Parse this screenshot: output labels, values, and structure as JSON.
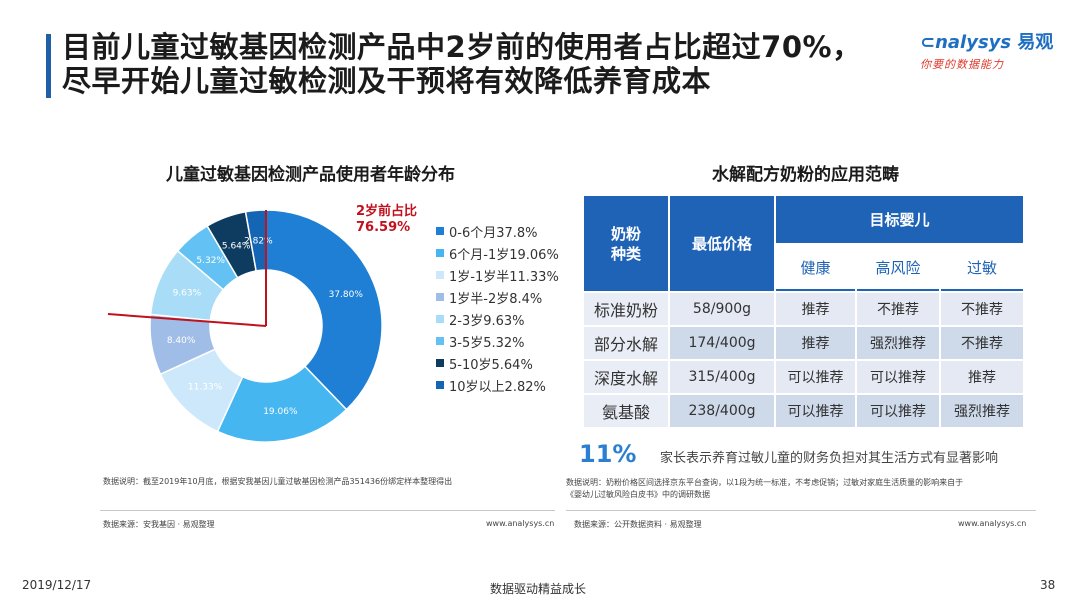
{
  "header": {
    "title_line1": "目前儿童过敏基因检测产品中2岁前的使用者占比超过70%，",
    "title_line2": "尽早开始儿童过敏检测及干预将有效降低养育成本",
    "logo_text": "nalysys",
    "logo_cn": "易观",
    "logo_tagline": "你要的数据能力"
  },
  "left_panel": {
    "title": "儿童过敏基因检测产品使用者年龄分布",
    "callout_line1": "2岁前占比",
    "callout_line2": "76.59%",
    "note": "数据说明：截至2019年10月底，根据安我基因儿童过敏基因检测产品351436份绑定样本整理得出",
    "source": "数据来源：安我基因 · 易观整理",
    "url": "www.analysys.cn"
  },
  "chart_data": {
    "type": "pie",
    "title": "儿童过敏基因检测产品使用者年龄分布",
    "categories": [
      "0-6个月",
      "6个月-1岁",
      "1岁-1岁半",
      "1岁半-2岁",
      "2-3岁",
      "3-5岁",
      "5-10岁",
      "10岁以上"
    ],
    "values": [
      37.8,
      19.06,
      11.33,
      8.4,
      9.63,
      5.32,
      5.64,
      2.82
    ],
    "slice_labels": [
      "37.80%",
      "19.06%",
      "11.33%",
      "8.40%",
      "9.63%",
      "5.32%",
      "5.64%",
      "2.82%"
    ],
    "legend_labels": [
      "0-6个月37.8%",
      "6个月-1岁19.06%",
      "1岁-1岁半11.33%",
      "1岁半-2岁8.4%",
      "2-3岁9.63%",
      "3-5岁5.32%",
      "5-10岁5.64%",
      "10岁以上2.82%"
    ],
    "colors": [
      "#1e7fd4",
      "#45b6f0",
      "#cde8fa",
      "#9fbde6",
      "#a8dcf7",
      "#63c2f3",
      "#0e3c60",
      "#1565b5"
    ],
    "legend_position": "right",
    "donut": true
  },
  "right_panel": {
    "title": "水解配方奶粉的应用范畴",
    "table": {
      "col_kind": "奶粉\n种类",
      "col_price": "最低价格",
      "col_target": "目标婴儿",
      "sub_headers": [
        "健康",
        "高风险",
        "过敏"
      ],
      "rows": [
        {
          "name": "标准奶粉",
          "price": "58/900g",
          "cells": [
            "推荐",
            "不推荐",
            "不推荐"
          ]
        },
        {
          "name": "部分水解",
          "price": "174/400g",
          "cells": [
            "推荐",
            "强烈推荐",
            "不推荐"
          ]
        },
        {
          "name": "深度水解",
          "price": "315/400g",
          "cells": [
            "可以推荐",
            "可以推荐",
            "推荐"
          ]
        },
        {
          "name": "氨基酸",
          "price": "238/400g",
          "cells": [
            "可以推荐",
            "可以推荐",
            "强烈推荐"
          ]
        }
      ]
    },
    "stat_value": "11%",
    "stat_desc": "家长表示养育过敏儿童的财务负担对其生活方式有显著影响",
    "note_line1": "数据说明：奶粉价格区间选择京东平台查询，以1段为统一标准，不考虑促销；过敏对家庭生活质量的影响来自于",
    "note_line2": "《婴幼儿过敏风险白皮书》中的调研数据",
    "source": "数据来源：公开数据资料 · 易观整理",
    "url": "www.analysys.cn"
  },
  "footer": {
    "date": "2019/12/17",
    "slogan": "数据驱动精益成长",
    "page": "38"
  }
}
